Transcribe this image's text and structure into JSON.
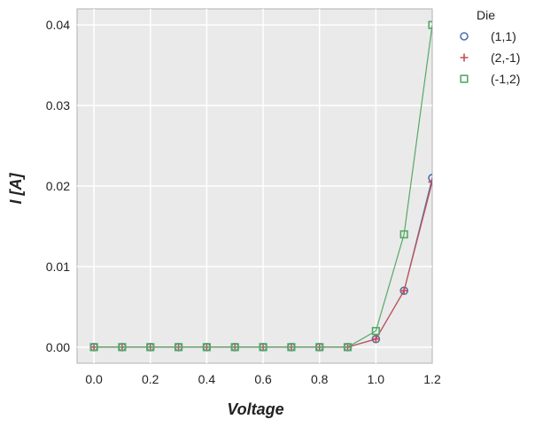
{
  "chart_data": {
    "type": "line",
    "xlabel": "Voltage",
    "ylabel": "I [A]",
    "xlim": [
      -0.06,
      1.2
    ],
    "ylim": [
      -0.002,
      0.042
    ],
    "xticks": [
      0.0,
      0.2,
      0.4,
      0.6,
      0.8,
      1.0,
      1.2
    ],
    "xtick_labels": [
      "0.0",
      "0.2",
      "0.4",
      "0.6",
      "0.8",
      "1.0",
      "1.2"
    ],
    "yticks": [
      0.0,
      0.01,
      0.02,
      0.03,
      0.04
    ],
    "ytick_labels": [
      "0.00",
      "0.01",
      "0.02",
      "0.03",
      "0.04"
    ],
    "grid": true,
    "legend": {
      "title": "Die",
      "placement": "outside-top-right"
    },
    "x": [
      0.0,
      0.1,
      0.2,
      0.3,
      0.4,
      0.5,
      0.6,
      0.7,
      0.8,
      0.9,
      1.0,
      1.1,
      1.2
    ],
    "series": [
      {
        "name": "(1,1)",
        "marker": "circle",
        "color": "#4c72b0",
        "values": [
          0,
          0,
          0,
          0,
          0,
          0,
          0,
          0,
          0,
          0,
          0.001,
          0.007,
          0.021
        ]
      },
      {
        "name": "(2,-1)",
        "marker": "plus",
        "color": "#c44e52",
        "values": [
          0,
          0,
          0,
          0,
          0,
          0,
          0,
          0,
          0,
          0,
          0.001,
          0.007,
          0.0205
        ]
      },
      {
        "name": "(-1,2)",
        "marker": "square",
        "color": "#55a868",
        "values": [
          0,
          0,
          0,
          0,
          0,
          0,
          0,
          0,
          0,
          0,
          0.002,
          0.014,
          0.04
        ]
      }
    ],
    "colors": {
      "plot_background": "#eaeaea",
      "grid": "#ffffff",
      "frame": "#b0b0b0"
    }
  }
}
